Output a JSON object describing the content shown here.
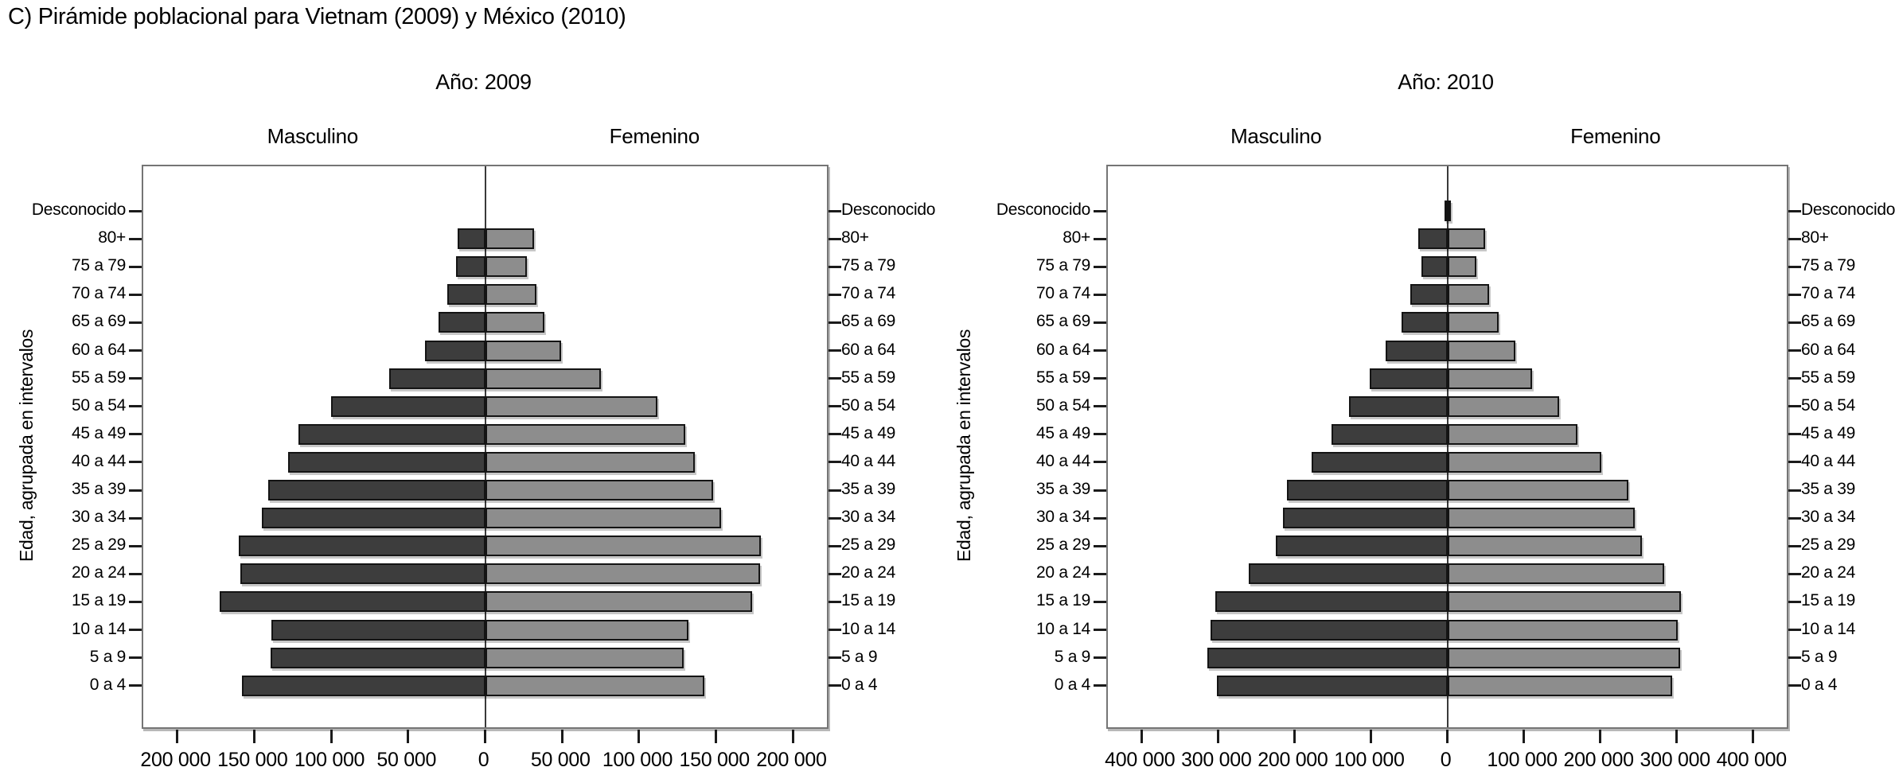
{
  "page_title": "C) Pirámide poblacional para Vietnam (2009) y México (2010)",
  "colors": {
    "male_fill": "#3d3d3d",
    "female_fill": "#8d8d8d",
    "bar_border": "#141414",
    "frame_border": "#757575",
    "center_line": "#3a3a3a",
    "tick": "#1b1b1b",
    "text": "#000000",
    "background": "#ffffff"
  },
  "chart_data": [
    {
      "type": "bar",
      "variant": "population_pyramid",
      "title": "Año: 2009",
      "country": "Vietnam",
      "male_header": "Masculino",
      "female_header": "Femenino",
      "y_axis_title": "Edad, agrupada en intervalos",
      "legend_position": "none",
      "grid": false,
      "categories": [
        "Desconocido",
        "80+",
        "75 a 79",
        "70 a 74",
        "65 a 69",
        "60 a 64",
        "55 a 59",
        "50 a 54",
        "45 a 49",
        "40 a 44",
        "35 a 39",
        "30 a 34",
        "25 a 29",
        "20 a 24",
        "15 a 19",
        "10 a 14",
        "5 a 9",
        "0 a 4"
      ],
      "series": [
        {
          "name": "Masculino",
          "values": [
            0,
            18000,
            19000,
            24500,
            30000,
            39000,
            62500,
            100000,
            121000,
            128000,
            141000,
            145000,
            160000,
            159000,
            172500,
            139000,
            139500,
            158000
          ]
        },
        {
          "name": "Femenino",
          "values": [
            0,
            32000,
            27000,
            33500,
            38500,
            49500,
            75000,
            112000,
            130000,
            136000,
            148000,
            153500,
            179000,
            178500,
            173500,
            132000,
            129000,
            142500
          ]
        }
      ],
      "x_axis": {
        "half_max": 222000,
        "ticks": [
          {
            "value": 200000,
            "label": "200 000"
          },
          {
            "value": 150000,
            "label": "150 000"
          },
          {
            "value": 100000,
            "label": "100 000"
          },
          {
            "value": 50000,
            "label": "50 000"
          },
          {
            "value": 0,
            "label": "0"
          }
        ]
      }
    },
    {
      "type": "bar",
      "variant": "population_pyramid",
      "title": "Año: 2010",
      "country": "México",
      "male_header": "Masculino",
      "female_header": "Femenino",
      "y_axis_title": "Edad, agrupada en intervalos",
      "legend_position": "none",
      "grid": false,
      "categories": [
        "Desconocido",
        "80+",
        "75 a 79",
        "70 a 74",
        "65 a 69",
        "60 a 64",
        "55 a 59",
        "50 a 54",
        "45 a 49",
        "40 a 44",
        "35 a 39",
        "30 a 34",
        "25 a 29",
        "20 a 24",
        "15 a 19",
        "10 a 14",
        "5 a 9",
        "0 a 4"
      ],
      "series": [
        {
          "name": "Masculino",
          "values": [
            3000,
            38500,
            33500,
            48000,
            59500,
            81000,
            102000,
            129000,
            152000,
            177000,
            210000,
            215000,
            224000,
            260000,
            303000,
            309500,
            314000,
            301000
          ]
        },
        {
          "name": "Femenino",
          "values": [
            2000,
            49000,
            38000,
            55000,
            67500,
            89500,
            110500,
            146000,
            170500,
            201000,
            236500,
            245500,
            255000,
            284000,
            305500,
            301000,
            304500,
            294000
          ]
        }
      ],
      "x_axis": {
        "half_max": 444000,
        "ticks": [
          {
            "value": 400000,
            "label": "400 000"
          },
          {
            "value": 300000,
            "label": "300 000"
          },
          {
            "value": 200000,
            "label": "200 000"
          },
          {
            "value": 100000,
            "label": "100 000"
          },
          {
            "value": 0,
            "label": "0"
          }
        ]
      }
    }
  ]
}
